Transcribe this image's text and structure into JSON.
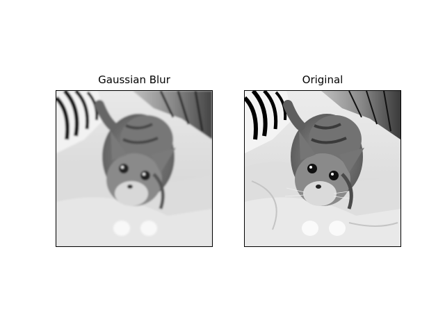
{
  "figure": {
    "panels": [
      {
        "title": "Gaussian Blur"
      },
      {
        "title": "Original"
      }
    ]
  },
  "colors": {
    "background": "#ffffff",
    "axes_border": "#000000"
  }
}
